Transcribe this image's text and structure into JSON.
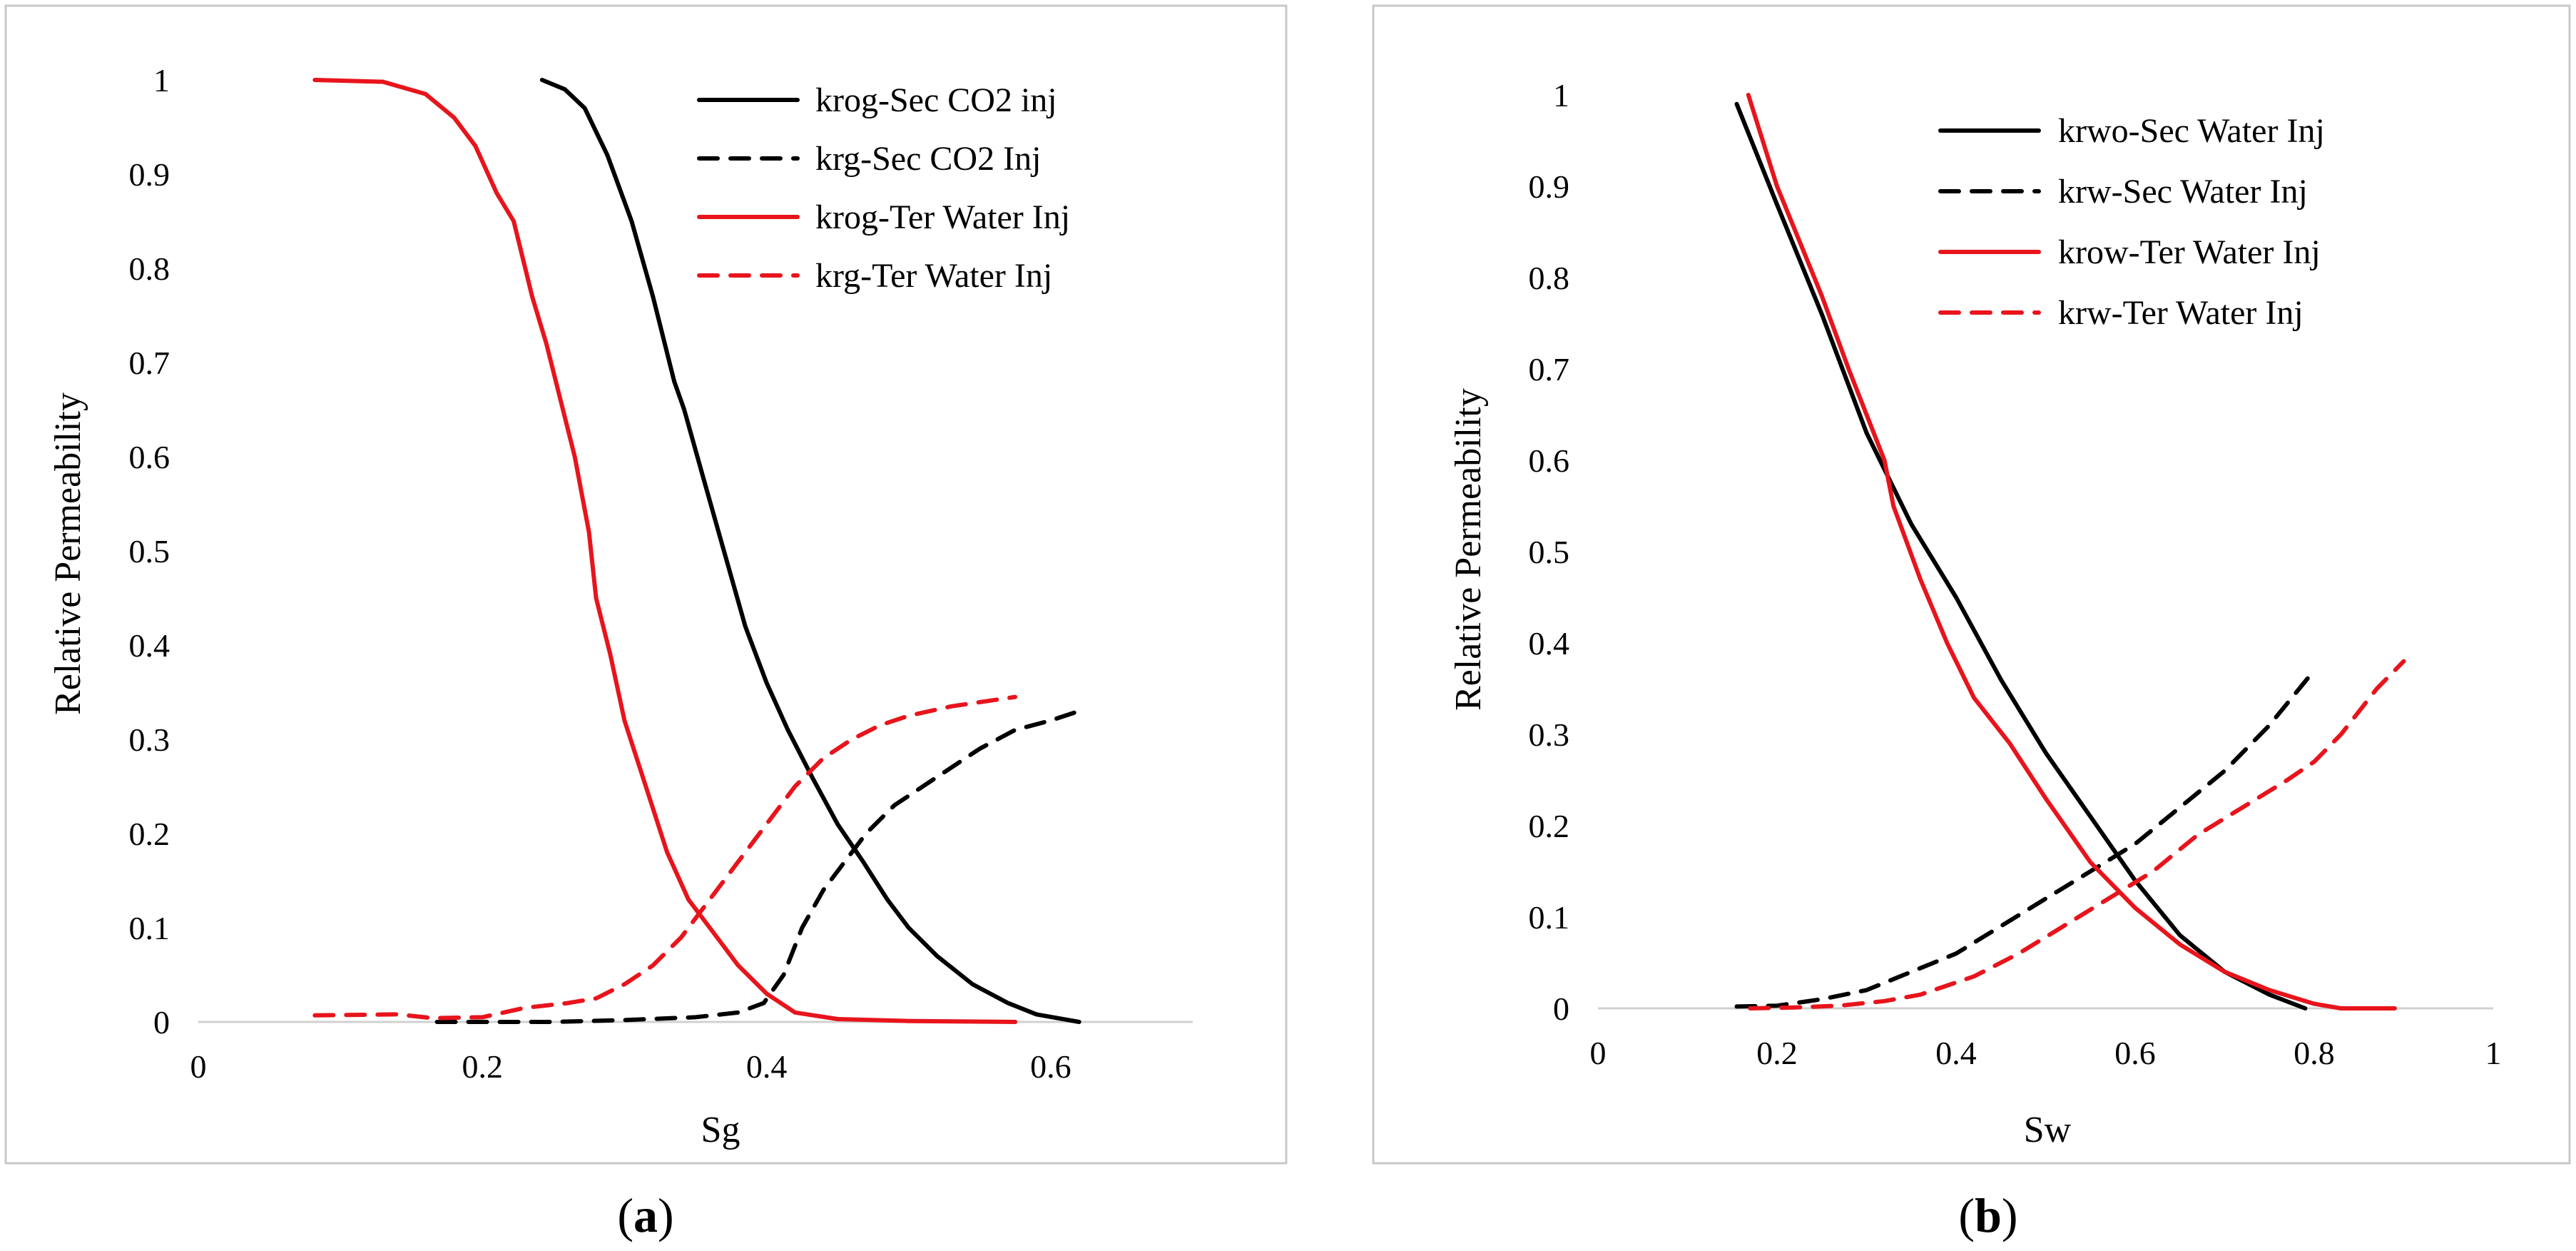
{
  "chart_data": [
    {
      "type": "line",
      "caption": "a",
      "xlabel": "Sg",
      "ylabel": "Relative Permeability",
      "xlim": [
        0,
        0.7
      ],
      "ylim": [
        0,
        1
      ],
      "x_ticks": [
        "0",
        "0.2",
        "0.4",
        "0.6"
      ],
      "x_tick_values": [
        0,
        0.2,
        0.4,
        0.6
      ],
      "y_ticks": [
        "0",
        "0.1",
        "0.2",
        "0.3",
        "0.4",
        "0.5",
        "0.6",
        "0.7",
        "0.8",
        "0.9",
        "1"
      ],
      "y_tick_values": [
        0,
        0.1,
        0.2,
        0.3,
        0.4,
        0.5,
        0.6,
        0.7,
        0.8,
        0.9,
        1
      ],
      "grid": false,
      "legend_position": "top-right",
      "series": [
        {
          "name": "krog-Sec CO2 inj",
          "color": "#000000",
          "dashed": false,
          "points": [
            [
              0.242,
              1.0
            ],
            [
              0.258,
              0.99
            ],
            [
              0.272,
              0.97
            ],
            [
              0.288,
              0.92
            ],
            [
              0.305,
              0.85
            ],
            [
              0.32,
              0.77
            ],
            [
              0.335,
              0.68
            ],
            [
              0.342,
              0.65
            ],
            [
              0.355,
              0.58
            ],
            [
              0.37,
              0.5
            ],
            [
              0.385,
              0.42
            ],
            [
              0.4,
              0.36
            ],
            [
              0.415,
              0.31
            ],
            [
              0.432,
              0.26
            ],
            [
              0.45,
              0.21
            ],
            [
              0.468,
              0.17
            ],
            [
              0.485,
              0.13
            ],
            [
              0.5,
              0.1
            ],
            [
              0.52,
              0.07
            ],
            [
              0.545,
              0.04
            ],
            [
              0.57,
              0.02
            ],
            [
              0.59,
              0.008
            ],
            [
              0.62,
              0.0
            ]
          ]
        },
        {
          "name": "krg-Sec CO2 Inj",
          "color": "#000000",
          "dashed": true,
          "points": [
            [
              0.168,
              0.0
            ],
            [
              0.25,
              0.0
            ],
            [
              0.3,
              0.002
            ],
            [
              0.35,
              0.005
            ],
            [
              0.38,
              0.01
            ],
            [
              0.398,
              0.02
            ],
            [
              0.412,
              0.05
            ],
            [
              0.425,
              0.1
            ],
            [
              0.44,
              0.14
            ],
            [
              0.455,
              0.17
            ],
            [
              0.47,
              0.2
            ],
            [
              0.49,
              0.23
            ],
            [
              0.51,
              0.25
            ],
            [
              0.53,
              0.27
            ],
            [
              0.55,
              0.29
            ],
            [
              0.575,
              0.31
            ],
            [
              0.6,
              0.32
            ],
            [
              0.62,
              0.33
            ]
          ]
        },
        {
          "name": "krog-Ter Water Inj",
          "color": "#e8141c",
          "dashed": false,
          "points": [
            [
              0.082,
              1.0
            ],
            [
              0.13,
              0.998
            ],
            [
              0.16,
              0.985
            ],
            [
              0.18,
              0.96
            ],
            [
              0.195,
              0.93
            ],
            [
              0.21,
              0.88
            ],
            [
              0.222,
              0.85
            ],
            [
              0.235,
              0.77
            ],
            [
              0.245,
              0.72
            ],
            [
              0.255,
              0.66
            ],
            [
              0.265,
              0.6
            ],
            [
              0.275,
              0.52
            ],
            [
              0.28,
              0.45
            ],
            [
              0.29,
              0.39
            ],
            [
              0.3,
              0.32
            ],
            [
              0.315,
              0.25
            ],
            [
              0.33,
              0.18
            ],
            [
              0.345,
              0.13
            ],
            [
              0.36,
              0.1
            ],
            [
              0.38,
              0.06
            ],
            [
              0.4,
              0.03
            ],
            [
              0.42,
              0.01
            ],
            [
              0.45,
              0.003
            ],
            [
              0.5,
              0.001
            ],
            [
              0.575,
              0.0
            ]
          ]
        },
        {
          "name": "krg-Ter Water Inj",
          "color": "#e8141c",
          "dashed": true,
          "points": [
            [
              0.082,
              0.007
            ],
            [
              0.14,
              0.008
            ],
            [
              0.165,
              0.004
            ],
            [
              0.2,
              0.005
            ],
            [
              0.23,
              0.015
            ],
            [
              0.26,
              0.02
            ],
            [
              0.28,
              0.025
            ],
            [
              0.3,
              0.04
            ],
            [
              0.32,
              0.06
            ],
            [
              0.34,
              0.09
            ],
            [
              0.36,
              0.13
            ],
            [
              0.38,
              0.17
            ],
            [
              0.4,
              0.21
            ],
            [
              0.42,
              0.25
            ],
            [
              0.44,
              0.28
            ],
            [
              0.46,
              0.3
            ],
            [
              0.48,
              0.315
            ],
            [
              0.5,
              0.325
            ],
            [
              0.53,
              0.335
            ],
            [
              0.575,
              0.345
            ]
          ]
        }
      ]
    },
    {
      "type": "line",
      "caption": "b",
      "xlabel": "Sw",
      "ylabel": "Relative Permeability",
      "xlim": [
        0,
        1
      ],
      "ylim": [
        0,
        1
      ],
      "x_ticks": [
        "0",
        "0.2",
        "0.4",
        "0.6",
        "0.8",
        "1"
      ],
      "x_tick_values": [
        0,
        0.2,
        0.4,
        0.6,
        0.8,
        1
      ],
      "y_ticks": [
        "0",
        "0.1",
        "0.2",
        "0.3",
        "0.4",
        "0.5",
        "0.6",
        "0.7",
        "0.8",
        "0.9",
        "1"
      ],
      "y_tick_values": [
        0,
        0.1,
        0.2,
        0.3,
        0.4,
        0.5,
        0.6,
        0.7,
        0.8,
        0.9,
        1
      ],
      "grid": false,
      "legend_position": "top-right",
      "series": [
        {
          "name": "krwo-Sec Water Inj",
          "color": "#000000",
          "dashed": false,
          "points": [
            [
              0.155,
              0.99
            ],
            [
              0.2,
              0.88
            ],
            [
              0.25,
              0.76
            ],
            [
              0.3,
              0.63
            ],
            [
              0.35,
              0.53
            ],
            [
              0.4,
              0.45
            ],
            [
              0.45,
              0.36
            ],
            [
              0.5,
              0.28
            ],
            [
              0.55,
              0.21
            ],
            [
              0.6,
              0.14
            ],
            [
              0.65,
              0.08
            ],
            [
              0.7,
              0.04
            ],
            [
              0.75,
              0.015
            ],
            [
              0.79,
              0.0
            ]
          ]
        },
        {
          "name": "krw-Sec Water Inj",
          "color": "#000000",
          "dashed": true,
          "points": [
            [
              0.155,
              0.002
            ],
            [
              0.2,
              0.003
            ],
            [
              0.25,
              0.01
            ],
            [
              0.3,
              0.02
            ],
            [
              0.35,
              0.04
            ],
            [
              0.4,
              0.06
            ],
            [
              0.45,
              0.09
            ],
            [
              0.5,
              0.12
            ],
            [
              0.55,
              0.15
            ],
            [
              0.6,
              0.18
            ],
            [
              0.65,
              0.22
            ],
            [
              0.7,
              0.26
            ],
            [
              0.75,
              0.31
            ],
            [
              0.8,
              0.37
            ]
          ]
        },
        {
          "name": "krow-Ter Water Inj",
          "color": "#e8141c",
          "dashed": false,
          "points": [
            [
              0.168,
              1.0
            ],
            [
              0.2,
              0.9
            ],
            [
              0.25,
              0.78
            ],
            [
              0.28,
              0.7
            ],
            [
              0.32,
              0.6
            ],
            [
              0.33,
              0.55
            ],
            [
              0.36,
              0.47
            ],
            [
              0.39,
              0.4
            ],
            [
              0.42,
              0.34
            ],
            [
              0.46,
              0.29
            ],
            [
              0.5,
              0.23
            ],
            [
              0.55,
              0.16
            ],
            [
              0.6,
              0.11
            ],
            [
              0.65,
              0.07
            ],
            [
              0.7,
              0.04
            ],
            [
              0.75,
              0.02
            ],
            [
              0.8,
              0.005
            ],
            [
              0.83,
              0.0
            ],
            [
              0.89,
              0.0
            ]
          ]
        },
        {
          "name": "krw-Ter Water Inj",
          "color": "#e8141c",
          "dashed": true,
          "points": [
            [
              0.17,
              0.0
            ],
            [
              0.22,
              0.001
            ],
            [
              0.27,
              0.003
            ],
            [
              0.32,
              0.008
            ],
            [
              0.36,
              0.015
            ],
            [
              0.42,
              0.035
            ],
            [
              0.47,
              0.06
            ],
            [
              0.52,
              0.09
            ],
            [
              0.57,
              0.12
            ],
            [
              0.62,
              0.15
            ],
            [
              0.67,
              0.19
            ],
            [
              0.72,
              0.22
            ],
            [
              0.77,
              0.25
            ],
            [
              0.8,
              0.27
            ],
            [
              0.83,
              0.3
            ],
            [
              0.87,
              0.35
            ],
            [
              0.9,
              0.38
            ]
          ]
        }
      ]
    }
  ]
}
